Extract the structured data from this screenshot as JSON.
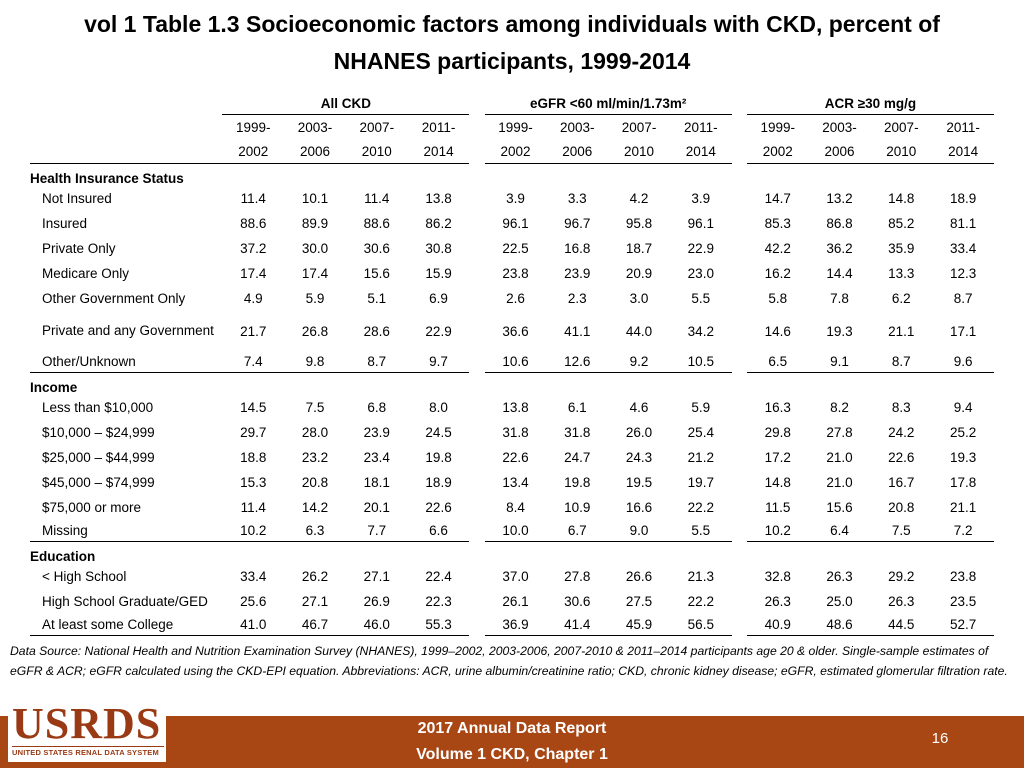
{
  "title": {
    "line1": "vol 1 Table 1.3 Socioeconomic factors among individuals with CKD, percent of",
    "line2": "NHANES participants, 1999-2014"
  },
  "groups": [
    "All CKD",
    "eGFR <60 ml/min/1.73m²",
    "ACR ≥30 mg/g"
  ],
  "years": [
    {
      "top": "1999-",
      "bottom": "2002"
    },
    {
      "top": "2003-",
      "bottom": "2006"
    },
    {
      "top": "2007-",
      "bottom": "2010"
    },
    {
      "top": "2011-",
      "bottom": "2014"
    }
  ],
  "sections": [
    {
      "heading": "Health Insurance Status",
      "rows": [
        {
          "label": "Not Insured",
          "values": [
            "11.4",
            "10.1",
            "11.4",
            "13.8",
            "3.9",
            "3.3",
            "4.2",
            "3.9",
            "14.7",
            "13.2",
            "14.8",
            "18.9"
          ]
        },
        {
          "label": "Insured",
          "values": [
            "88.6",
            "89.9",
            "88.6",
            "86.2",
            "96.1",
            "96.7",
            "95.8",
            "96.1",
            "85.3",
            "86.8",
            "85.2",
            "81.1"
          ]
        },
        {
          "label": "Private Only",
          "values": [
            "37.2",
            "30.0",
            "30.6",
            "30.8",
            "22.5",
            "16.8",
            "18.7",
            "22.9",
            "42.2",
            "36.2",
            "35.9",
            "33.4"
          ]
        },
        {
          "label": "Medicare Only",
          "values": [
            "17.4",
            "17.4",
            "15.6",
            "15.9",
            "23.8",
            "23.9",
            "20.9",
            "23.0",
            "16.2",
            "14.4",
            "13.3",
            "12.3"
          ]
        },
        {
          "label": "Other Government Only",
          "values": [
            "4.9",
            "5.9",
            "5.1",
            "6.9",
            "2.6",
            "2.3",
            "3.0",
            "5.5",
            "5.8",
            "7.8",
            "6.2",
            "8.7"
          ]
        },
        {
          "label": "Private and any Government",
          "values": [
            "21.7",
            "26.8",
            "28.6",
            "22.9",
            "36.6",
            "41.1",
            "44.0",
            "34.2",
            "14.6",
            "19.3",
            "21.1",
            "17.1"
          ]
        },
        {
          "label": "Other/Unknown",
          "values": [
            "7.4",
            "9.8",
            "8.7",
            "9.7",
            "10.6",
            "12.6",
            "9.2",
            "10.5",
            "6.5",
            "9.1",
            "8.7",
            "9.6"
          ]
        }
      ]
    },
    {
      "heading": "Income",
      "rows": [
        {
          "label": "Less than $10,000",
          "values": [
            "14.5",
            "7.5",
            "6.8",
            "8.0",
            "13.8",
            "6.1",
            "4.6",
            "5.9",
            "16.3",
            "8.2",
            "8.3",
            "9.4"
          ]
        },
        {
          "label": "$10,000 – $24,999",
          "values": [
            "29.7",
            "28.0",
            "23.9",
            "24.5",
            "31.8",
            "31.8",
            "26.0",
            "25.4",
            "29.8",
            "27.8",
            "24.2",
            "25.2"
          ]
        },
        {
          "label": "$25,000 – $44,999",
          "values": [
            "18.8",
            "23.2",
            "23.4",
            "19.8",
            "22.6",
            "24.7",
            "24.3",
            "21.2",
            "17.2",
            "21.0",
            "22.6",
            "19.3"
          ]
        },
        {
          "label": "$45,000 – $74,999",
          "values": [
            "15.3",
            "20.8",
            "18.1",
            "18.9",
            "13.4",
            "19.8",
            "19.5",
            "19.7",
            "14.8",
            "21.0",
            "16.7",
            "17.8"
          ]
        },
        {
          "label": "$75,000 or more",
          "values": [
            "11.4",
            "14.2",
            "20.1",
            "22.6",
            "8.4",
            "10.9",
            "16.6",
            "22.2",
            "11.5",
            "15.6",
            "20.8",
            "21.1"
          ]
        },
        {
          "label": "Missing",
          "values": [
            "10.2",
            "6.3",
            "7.7",
            "6.6",
            "10.0",
            "6.7",
            "9.0",
            "5.5",
            "10.2",
            "6.4",
            "7.5",
            "7.2"
          ]
        }
      ]
    },
    {
      "heading": "Education",
      "rows": [
        {
          "label": "< High School",
          "values": [
            "33.4",
            "26.2",
            "27.1",
            "22.4",
            "37.0",
            "27.8",
            "26.6",
            "21.3",
            "32.8",
            "26.3",
            "29.2",
            "23.8"
          ]
        },
        {
          "label": "High School Graduate/GED",
          "values": [
            "25.6",
            "27.1",
            "26.9",
            "22.3",
            "26.1",
            "30.6",
            "27.5",
            "22.2",
            "26.3",
            "25.0",
            "26.3",
            "23.5"
          ]
        },
        {
          "label": "At least some College",
          "values": [
            "41.0",
            "46.7",
            "46.0",
            "55.3",
            "36.9",
            "41.4",
            "45.9",
            "56.5",
            "40.9",
            "48.6",
            "44.5",
            "52.7"
          ]
        }
      ]
    }
  ],
  "footnote": "Data Source: National Health and Nutrition Examination Survey (NHANES), 1999–2002, 2003-2006, 2007-2010 & 2011–2014 participants age 20 & older. Single-sample estimates of eGFR & ACR; eGFR calculated using the CKD-EPI equation. Abbreviations: ACR, urine albumin/creatinine ratio; CKD, chronic kidney disease; eGFR, estimated glomerular filtration rate.",
  "logo": {
    "text": "USRDS",
    "subtitle": "UNITED STATES RENAL DATA SYSTEM"
  },
  "footer": {
    "line1": "2017 Annual Data Report",
    "line2": "Volume 1 CKD, Chapter 1",
    "page": "16"
  }
}
